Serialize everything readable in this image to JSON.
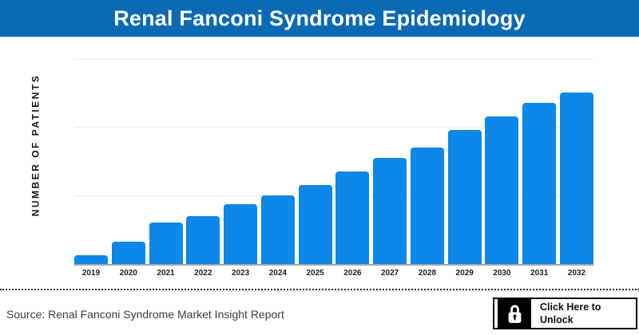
{
  "header": {
    "title": "Renal Fanconi Syndrome Epidemiology"
  },
  "colors": {
    "header_bg": "#0a6ab4",
    "bar": "#0d87e8",
    "gridline": "#ececec",
    "axis_line": "#a6a6a6",
    "title_text": "#ffffff"
  },
  "chart_data": {
    "type": "bar",
    "title": "Renal Fanconi Syndrome Epidemiology",
    "categories": [
      "2019",
      "2020",
      "2021",
      "2022",
      "2023",
      "2024",
      "2025",
      "2026",
      "2027",
      "2028",
      "2029",
      "2030",
      "2031",
      "2032"
    ],
    "values": [
      5,
      13,
      24,
      28,
      35,
      40,
      46,
      54,
      62,
      68,
      78,
      86,
      94,
      100
    ],
    "value_note": "y-axis has no numeric tick labels; values are bar heights as percent of the tallest bar (2032)",
    "xlabel": "",
    "ylabel": "NUMBER OF PATIENTS",
    "ylim": [
      0,
      120
    ],
    "grid": "3 light horizontal gridlines above baseline, no y tick labels",
    "legend": false,
    "bar_color": "#0d87e8"
  },
  "footer": {
    "source": "Source: Renal Fanconi Syndrome Market Insight Report",
    "unlock_button": {
      "line1": "Click Here to",
      "line2": "Unlock",
      "icon": "lock-icon"
    }
  }
}
